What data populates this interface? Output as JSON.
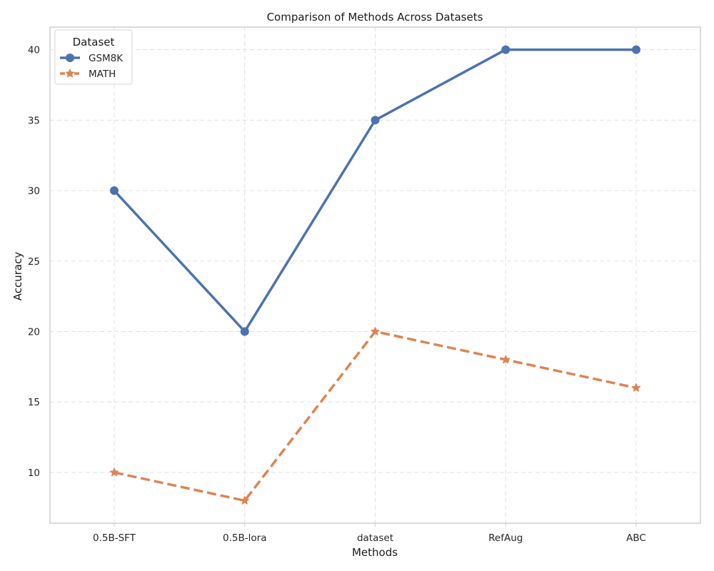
{
  "chart_data": {
    "type": "line",
    "title": "Comparison of Methods Across Datasets",
    "xlabel": "Methods",
    "ylabel": "Accuracy",
    "categories": [
      "0.5B-SFT",
      "0.5B-lora",
      "dataset",
      "RefAug",
      "ABC"
    ],
    "ylim": [
      6.4,
      41.6
    ],
    "yticks": [
      10,
      15,
      20,
      25,
      30,
      35,
      40
    ],
    "grid": true,
    "legend": {
      "title": "Dataset",
      "placement": "top-left"
    },
    "series": [
      {
        "name": "GSM8K",
        "values": [
          30,
          20,
          35,
          40,
          40
        ],
        "color": "#4c72b0",
        "line_style": "solid",
        "marker": "circle"
      },
      {
        "name": "MATH",
        "values": [
          10,
          8,
          20,
          18,
          16
        ],
        "color": "#dd8452",
        "line_style": "dashed",
        "marker": "star"
      }
    ]
  }
}
